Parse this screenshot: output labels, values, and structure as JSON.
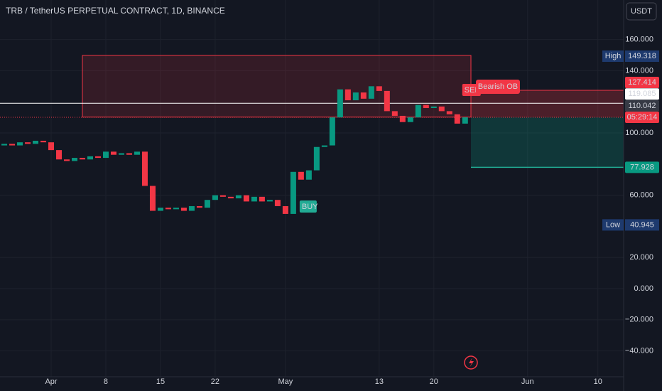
{
  "header": {
    "title": "TRB / TetherUS PERPETUAL CONTRACT, 1D, BINANCE",
    "currency": "USDT"
  },
  "chart_data": {
    "type": "candlestick",
    "open": [
      92,
      93,
      92,
      94,
      93,
      95,
      94,
      89,
      83,
      82,
      84,
      83,
      85,
      84,
      88,
      86,
      87,
      86,
      88,
      66,
      50,
      52,
      51,
      52,
      50,
      53,
      52,
      57,
      60,
      59,
      58,
      60,
      56,
      59,
      56,
      57,
      53,
      48,
      75,
      70,
      76,
      91,
      92,
      110,
      128,
      121,
      126,
      122,
      130,
      127,
      114,
      111,
      107,
      110,
      118,
      116,
      117,
      114,
      112,
      106
    ],
    "high": {
      "label": "High",
      "value": 149.318
    },
    "low": {
      "label": "Low",
      "value": 40.945
    },
    "close": [
      93,
      92,
      94,
      93,
      95,
      94,
      89,
      83,
      82,
      84,
      83,
      85,
      84,
      88,
      86,
      87,
      86,
      88,
      66,
      50,
      52,
      51,
      52,
      50,
      53,
      52,
      57,
      60,
      59,
      58,
      60,
      56,
      59,
      56,
      57,
      53,
      48,
      75,
      70,
      76,
      91,
      92,
      110,
      128,
      121,
      126,
      122,
      130,
      127,
      114,
      111,
      107,
      110,
      118,
      116,
      117,
      114,
      112,
      106,
      110.042
    ],
    "up_color": "#089981",
    "down_color": "#f23645",
    "xlim": [
      -0.55,
      79.3
    ],
    "xticks": [
      {
        "value": 6,
        "label": "Apr"
      },
      {
        "value": 13,
        "label": "8"
      },
      {
        "value": 20,
        "label": "15"
      },
      {
        "value": 27,
        "label": "22"
      },
      {
        "value": 36,
        "label": "May"
      },
      {
        "value": 48,
        "label": "13"
      },
      {
        "value": 55,
        "label": "20"
      },
      {
        "value": 67,
        "label": "Jun"
      },
      {
        "value": 76,
        "label": "10"
      }
    ],
    "ylim": [
      -56.6,
      185.4
    ],
    "yticks": [
      {
        "value": 160,
        "label": "160.000"
      },
      {
        "value": 140,
        "label": "140.000"
      },
      {
        "value": 100,
        "label": "100.000"
      },
      {
        "value": 60,
        "label": "60.000"
      },
      {
        "value": 20,
        "label": "20.000"
      },
      {
        "value": 0,
        "label": "0.000"
      },
      {
        "value": -20,
        "label": "−20.000"
      },
      {
        "value": -40,
        "label": "−40.000"
      }
    ],
    "grid": true,
    "stop": 127.414,
    "line": 119.085,
    "last": 110.042,
    "countdown": "05:29:14",
    "target": 77.928,
    "order_block": {
      "label": "Bearish OB",
      "top": 149.8,
      "bottom": 110.2
    },
    "signals": [
      {
        "label": "BUY",
        "index": 38
      },
      {
        "label": "SELL",
        "index": 59
      }
    ]
  }
}
